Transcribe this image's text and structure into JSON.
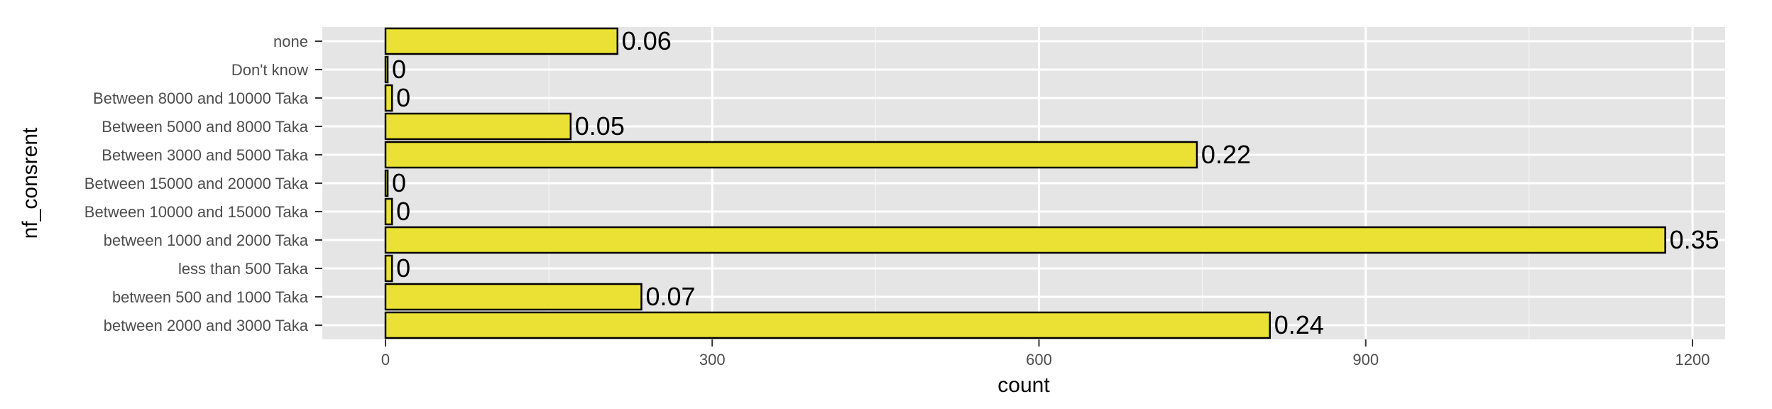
{
  "chart_data": {
    "type": "bar",
    "orientation": "horizontal",
    "xlabel": "count",
    "ylabel": "nf_consrent",
    "xlim": [
      -58,
      1230
    ],
    "x_ticks": [
      0,
      300,
      600,
      900,
      1200
    ],
    "x_tick_labels": [
      "0",
      "300",
      "600",
      "900",
      "1200"
    ],
    "grid": true,
    "bar_color": "#ebe134",
    "bar_edge_color": "#000000",
    "panel_bg": "#e5e5e5",
    "categories": [
      "none",
      "Don't know",
      "Between 8000  and 10000 Taka",
      "Between 5000  and 8000 Taka",
      "Between 3000 and 5000 Taka",
      "Between 15000 and 20000 Taka",
      "Between 10000 and 15000 Taka",
      "between 1000 and 2000 Taka",
      "less than 500 Taka",
      "between 500 and 1000 Taka",
      "between 2000 and 3000 Taka"
    ],
    "values": [
      213,
      2,
      6,
      170,
      745,
      2,
      6,
      1175,
      6,
      235,
      812
    ],
    "labels": [
      "0.06",
      "0",
      "0",
      "0.05",
      "0.22",
      "0",
      "0",
      "0.35",
      "0",
      "0.07",
      "0.24"
    ]
  }
}
